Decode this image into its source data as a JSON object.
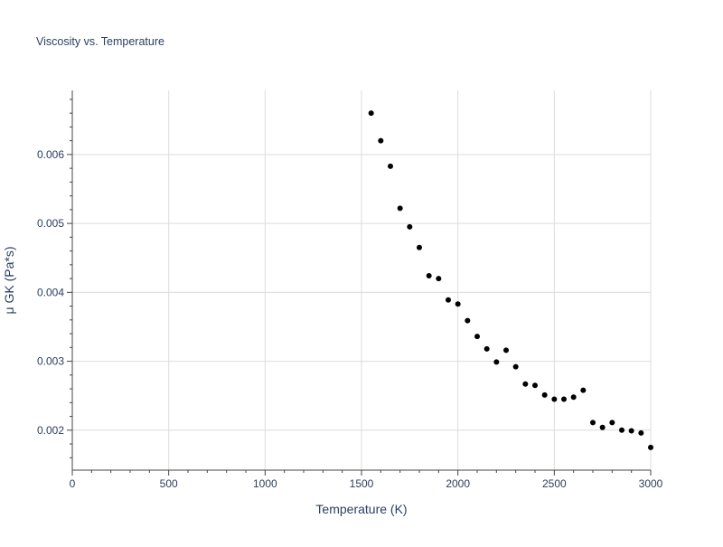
{
  "chart_data": {
    "type": "scatter",
    "title": "Viscosity vs. Temperature",
    "xlabel": "Temperature (K)",
    "ylabel": "μ GK (Pa*s)",
    "xlim": [
      0,
      3000
    ],
    "ylim": [
      0.00142,
      0.00693
    ],
    "x_ticks": [
      0,
      500,
      1000,
      1500,
      2000,
      2500,
      3000
    ],
    "x_tick_labels": [
      "0",
      "500",
      "1000",
      "1500",
      "2000",
      "2500",
      "3000"
    ],
    "y_ticks": [
      0.002,
      0.003,
      0.004,
      0.005,
      0.006
    ],
    "y_tick_labels": [
      "0.002",
      "0.003",
      "0.004",
      "0.005",
      "0.006"
    ],
    "grid": true,
    "legend": false,
    "marker_color": "#000000",
    "series": [
      {
        "x": [
          1550,
          1600,
          1650,
          1700,
          1750,
          1800,
          1850,
          1900,
          1950,
          2000,
          2050,
          2100,
          2150,
          2200,
          2250,
          2300,
          2350,
          2400,
          2450,
          2500,
          2550,
          2600,
          2650,
          2700,
          2750,
          2800,
          2850,
          2900,
          2950,
          3000
        ],
        "values": [
          0.0066,
          0.0062,
          0.00583,
          0.00522,
          0.00495,
          0.00465,
          0.00424,
          0.0042,
          0.00389,
          0.00383,
          0.00359,
          0.00336,
          0.00318,
          0.00299,
          0.00316,
          0.00292,
          0.00267,
          0.00265,
          0.00251,
          0.00245,
          0.00245,
          0.00248,
          0.00258,
          0.00211,
          0.00204,
          0.00211,
          0.002,
          0.00199,
          0.00196,
          0.00175
        ]
      }
    ]
  }
}
